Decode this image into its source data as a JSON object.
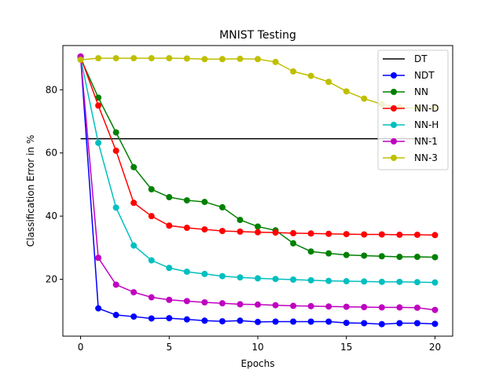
{
  "chart_data": {
    "type": "line",
    "title": "MNIST Testing",
    "xlabel": "Epochs",
    "ylabel": "Classification Error in %",
    "xlim": [
      -1,
      21
    ],
    "ylim": [
      2,
      94
    ],
    "xticks": [
      0,
      5,
      10,
      15,
      20
    ],
    "yticks": [
      20,
      40,
      60,
      80
    ],
    "legend_position": "top-right",
    "grid": false,
    "x": [
      0,
      1,
      2,
      3,
      4,
      5,
      6,
      7,
      8,
      9,
      10,
      11,
      12,
      13,
      14,
      15,
      16,
      17,
      18,
      19,
      20
    ],
    "series": [
      {
        "name": "DT",
        "color": "#000000",
        "marker": "none",
        "x": [
          0,
          20
        ],
        "values": [
          64.5,
          64.5
        ]
      },
      {
        "name": "NDT",
        "color": "#0000ff",
        "marker": "circle",
        "values": [
          90.5,
          10.8,
          8.7,
          8.2,
          7.6,
          7.7,
          7.3,
          6.9,
          6.7,
          6.9,
          6.5,
          6.6,
          6.6,
          6.6,
          6.6,
          6.2,
          6.1,
          5.8,
          6.1,
          6.1,
          5.9
        ]
      },
      {
        "name": "NN",
        "color": "#008000",
        "marker": "circle",
        "values": [
          90,
          77.5,
          66.5,
          55.5,
          48.5,
          46,
          45,
          44.5,
          42.8,
          38.8,
          36.7,
          35.5,
          31.4,
          28.8,
          28.2,
          27.7,
          27.5,
          27.3,
          27.1,
          27.1,
          27
        ]
      },
      {
        "name": "NN-D",
        "color": "#ff0000",
        "marker": "circle",
        "values": [
          90.5,
          75,
          60.7,
          44.2,
          40,
          37,
          36.3,
          35.8,
          35.3,
          35.1,
          34.9,
          34.8,
          34.6,
          34.5,
          34.4,
          34.3,
          34.2,
          34.2,
          34.1,
          34.1,
          34
        ]
      },
      {
        "name": "NN-H",
        "color": "#00bfbf",
        "marker": "circle",
        "values": [
          90,
          63.2,
          42.7,
          30.7,
          26,
          23.6,
          22.4,
          21.7,
          21,
          20.6,
          20.3,
          20.1,
          19.9,
          19.7,
          19.5,
          19.4,
          19.3,
          19.2,
          19.2,
          19.1,
          19
        ]
      },
      {
        "name": "NN-1",
        "color": "#bf00bf",
        "marker": "circle",
        "values": [
          90.5,
          26.8,
          18.3,
          15.9,
          14.3,
          13.5,
          13.1,
          12.7,
          12.4,
          12.1,
          12,
          11.8,
          11.6,
          11.5,
          11.4,
          11.3,
          11.2,
          11.1,
          11.1,
          11,
          10.3
        ]
      },
      {
        "name": "NN-3",
        "color": "#bfbf00",
        "marker": "circle",
        "values": [
          89.5,
          90,
          90,
          90,
          90,
          90,
          89.9,
          89.7,
          89.7,
          89.8,
          89.7,
          88.8,
          85.8,
          84.4,
          82.5,
          79.5,
          77.2,
          75.4,
          74.5,
          74.2,
          74.5
        ]
      }
    ]
  }
}
